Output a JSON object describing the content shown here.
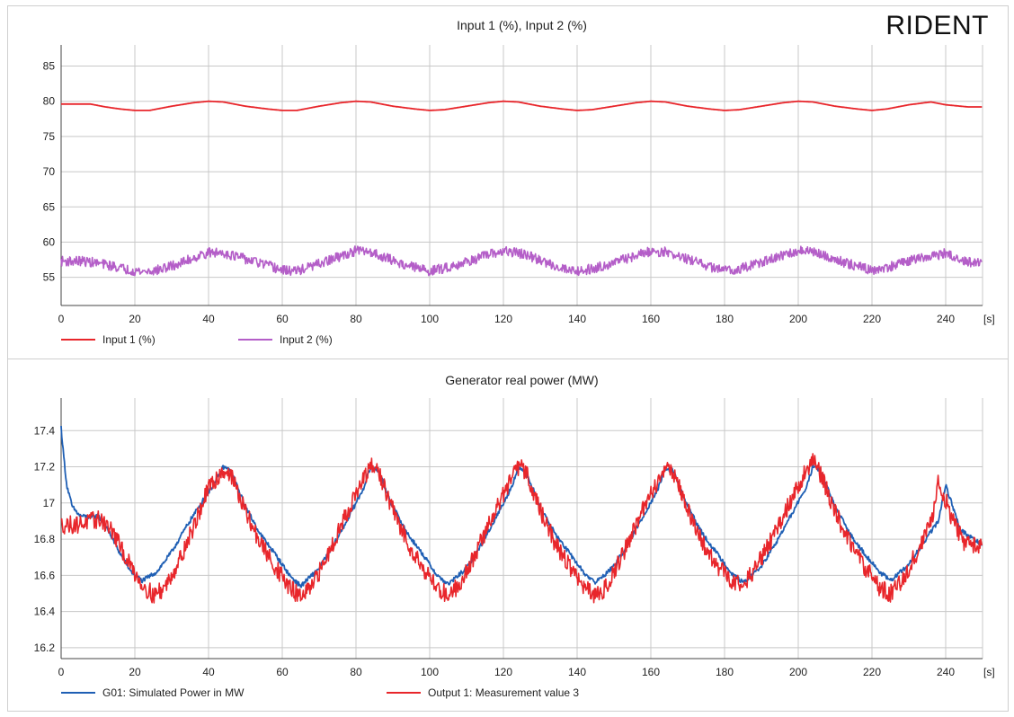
{
  "brand": "RIDENT",
  "chart_data": [
    {
      "type": "line",
      "title": "Input 1 (%), Input 2 (%)",
      "xlabel_unit": "[s]",
      "xlim": [
        0,
        250
      ],
      "ylim": [
        51,
        88
      ],
      "x_ticks": [
        0,
        20,
        40,
        60,
        80,
        100,
        120,
        140,
        160,
        180,
        200,
        220,
        240
      ],
      "y_ticks": [
        55,
        60,
        65,
        70,
        75,
        80,
        85
      ],
      "grid": true,
      "legend_position": "bottom",
      "series": [
        {
          "name": "Input 1 (%)",
          "color": "#e8262b",
          "noise": 0,
          "x": [
            0,
            8,
            12,
            16,
            20,
            24,
            30,
            36,
            40,
            44,
            50,
            56,
            60,
            64,
            70,
            76,
            80,
            84,
            90,
            96,
            100,
            104,
            110,
            116,
            120,
            124,
            130,
            136,
            140,
            144,
            150,
            156,
            160,
            164,
            170,
            176,
            180,
            184,
            190,
            196,
            200,
            204,
            210,
            216,
            220,
            224,
            230,
            236,
            240,
            246,
            250
          ],
          "y": [
            79.6,
            79.6,
            79.2,
            78.9,
            78.7,
            78.7,
            79.3,
            79.8,
            80.0,
            79.9,
            79.3,
            78.9,
            78.7,
            78.7,
            79.3,
            79.8,
            80.0,
            79.9,
            79.3,
            78.9,
            78.7,
            78.8,
            79.3,
            79.8,
            80.0,
            79.9,
            79.3,
            78.9,
            78.7,
            78.8,
            79.3,
            79.8,
            80.0,
            79.9,
            79.3,
            78.9,
            78.7,
            78.8,
            79.3,
            79.8,
            80.0,
            79.9,
            79.3,
            78.9,
            78.7,
            78.9,
            79.5,
            79.9,
            79.5,
            79.2,
            79.2
          ]
        },
        {
          "name": "Input 2 (%)",
          "color": "#b45ec8",
          "noise": 0.7,
          "x": [
            0,
            6,
            10,
            14,
            18,
            22,
            26,
            32,
            36,
            40,
            44,
            48,
            52,
            56,
            60,
            64,
            70,
            76,
            80,
            84,
            88,
            92,
            96,
            100,
            104,
            110,
            116,
            120,
            124,
            128,
            132,
            136,
            140,
            144,
            150,
            156,
            160,
            164,
            168,
            172,
            176,
            180,
            184,
            190,
            196,
            200,
            204,
            208,
            212,
            216,
            220,
            224,
            230,
            236,
            240,
            244,
            250
          ],
          "y": [
            57.3,
            57.3,
            57.0,
            56.6,
            56.1,
            55.8,
            56.0,
            56.9,
            57.8,
            58.5,
            58.5,
            57.9,
            57.3,
            56.7,
            56.0,
            55.9,
            56.9,
            58.0,
            58.8,
            58.6,
            57.8,
            57.0,
            56.4,
            55.9,
            56.3,
            57.2,
            58.2,
            58.7,
            58.5,
            57.8,
            57.0,
            56.3,
            55.9,
            56.2,
            57.1,
            58.1,
            58.7,
            58.6,
            57.9,
            57.2,
            56.5,
            56.0,
            56.2,
            57.1,
            58.1,
            58.8,
            58.6,
            57.9,
            57.2,
            56.6,
            56.0,
            56.4,
            57.3,
            58.0,
            58.4,
            57.3,
            56.9
          ]
        }
      ]
    },
    {
      "type": "line",
      "title": "Generator real power (MW)",
      "xlabel_unit": "[s]",
      "xlim": [
        0,
        250
      ],
      "ylim": [
        16.14,
        17.58
      ],
      "x_ticks": [
        0,
        20,
        40,
        60,
        80,
        100,
        120,
        140,
        160,
        180,
        200,
        220,
        240
      ],
      "y_ticks": [
        16.2,
        16.4,
        16.6,
        16.8,
        17,
        17.2,
        17.4
      ],
      "y_tick_labels": [
        "16.2",
        "16.4",
        "16.6",
        "16.8",
        "17",
        "17.2",
        "17.4"
      ],
      "grid": true,
      "legend_position": "bottom",
      "series": [
        {
          "name": "G01: Simulated Power in MW",
          "color": "#1f5fb4",
          "noise": 0.012,
          "x": [
            0,
            0.5,
            1.5,
            3,
            5,
            8,
            10,
            13,
            16,
            19,
            22,
            26,
            30,
            34,
            38,
            42,
            44,
            46,
            50,
            54,
            58,
            62,
            65,
            70,
            74,
            78,
            82,
            84,
            86,
            90,
            94,
            98,
            102,
            105,
            110,
            114,
            118,
            122,
            124,
            126,
            130,
            134,
            138,
            142,
            145,
            150,
            154,
            158,
            162,
            164,
            166,
            170,
            174,
            178,
            182,
            185,
            190,
            194,
            198,
            202,
            204,
            206,
            210,
            214,
            218,
            222,
            225,
            230,
            234,
            238,
            240,
            244,
            250
          ],
          "y": [
            17.42,
            17.3,
            17.1,
            16.98,
            16.93,
            16.92,
            16.93,
            16.84,
            16.72,
            16.62,
            16.57,
            16.62,
            16.73,
            16.87,
            17.0,
            17.12,
            17.2,
            17.18,
            16.98,
            16.83,
            16.72,
            16.6,
            16.54,
            16.64,
            16.77,
            16.92,
            17.08,
            17.2,
            17.18,
            16.98,
            16.83,
            16.72,
            16.6,
            16.55,
            16.64,
            16.77,
            16.92,
            17.08,
            17.19,
            17.18,
            16.98,
            16.83,
            16.72,
            16.61,
            16.56,
            16.65,
            16.78,
            16.93,
            17.08,
            17.19,
            17.18,
            16.98,
            16.83,
            16.72,
            16.61,
            16.56,
            16.65,
            16.78,
            16.93,
            17.08,
            17.2,
            17.18,
            16.98,
            16.83,
            16.72,
            16.62,
            16.57,
            16.66,
            16.78,
            16.9,
            17.1,
            16.85,
            16.77
          ]
        },
        {
          "name": "Output 1: Measurement value 3",
          "color": "#e8262b",
          "noise": 0.05,
          "x": [
            0,
            4,
            8,
            11,
            14,
            18,
            22,
            25,
            28,
            32,
            36,
            40,
            44,
            46,
            50,
            54,
            58,
            62,
            65,
            68,
            72,
            76,
            80,
            84,
            86,
            90,
            94,
            98,
            102,
            105,
            108,
            112,
            116,
            120,
            124,
            126,
            130,
            134,
            138,
            142,
            145,
            148,
            152,
            156,
            160,
            164,
            166,
            170,
            174,
            178,
            182,
            185,
            188,
            192,
            196,
            200,
            204,
            206,
            210,
            214,
            218,
            222,
            225,
            228,
            232,
            236,
            238,
            242,
            245,
            250
          ],
          "y": [
            16.88,
            16.88,
            16.9,
            16.91,
            16.84,
            16.68,
            16.55,
            16.49,
            16.53,
            16.68,
            16.87,
            17.08,
            17.18,
            17.16,
            16.95,
            16.78,
            16.65,
            16.53,
            16.48,
            16.53,
            16.7,
            16.88,
            17.05,
            17.2,
            17.18,
            16.96,
            16.78,
            16.65,
            16.53,
            16.49,
            16.55,
            16.7,
            16.88,
            17.05,
            17.2,
            17.18,
            16.96,
            16.78,
            16.65,
            16.53,
            16.48,
            16.54,
            16.7,
            16.88,
            17.05,
            17.2,
            17.18,
            16.96,
            16.78,
            16.65,
            16.57,
            16.56,
            16.62,
            16.77,
            16.93,
            17.1,
            17.24,
            17.16,
            16.95,
            16.78,
            16.65,
            16.53,
            16.5,
            16.57,
            16.72,
            16.88,
            17.13,
            16.9,
            16.78,
            16.77
          ]
        }
      ]
    }
  ]
}
